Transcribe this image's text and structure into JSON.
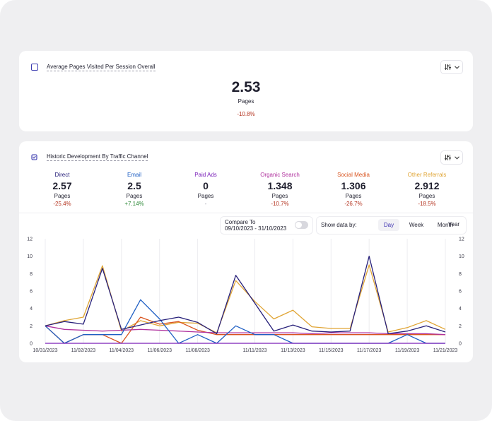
{
  "summary": {
    "title": "Average Pages Visited Per Session Overall",
    "value": "2.53",
    "unit": "Pages",
    "delta": "-10.8%",
    "menu_icon": "sliders-icon"
  },
  "channels": {
    "title": "Historic Development By Traffic Channel",
    "menu_icon": "sliders-icon",
    "metrics": [
      {
        "name": "Direct",
        "value": "2.57",
        "unit": "Pages",
        "delta": "-25.4%",
        "color": "#27207a",
        "delta_color": "#b4331f"
      },
      {
        "name": "Email",
        "value": "2.5",
        "unit": "Pages",
        "delta": "+7.14%",
        "color": "#1f5fc4",
        "delta_color": "#2f8a3a"
      },
      {
        "name": "Paid Ads",
        "value": "0",
        "unit": "Pages",
        "delta": "-",
        "color": "#7a1fb8",
        "delta_color": "#9a9aa8"
      },
      {
        "name": "Organic Search",
        "value": "1.348",
        "unit": "Pages",
        "delta": "-10.7%",
        "color": "#b0329e",
        "delta_color": "#b4331f"
      },
      {
        "name": "Social Media",
        "value": "1.306",
        "unit": "Pages",
        "delta": "-26.7%",
        "color": "#d9541f",
        "delta_color": "#b4331f"
      },
      {
        "name": "Other Referrals",
        "value": "2.912",
        "unit": "Pages",
        "delta": "-18.5%",
        "color": "#e0a535",
        "delta_color": "#b4331f"
      }
    ],
    "compare": {
      "label": "Compare To",
      "range": "09/10/2023 - 31/10/2023",
      "enabled": false
    },
    "show_by": {
      "label": "Show data by:",
      "options": [
        "Day",
        "Week",
        "Month",
        "Year"
      ],
      "selected": "Day"
    }
  },
  "chart_data": {
    "type": "line",
    "x": [
      "10/31/2023",
      "11/01/2023",
      "11/02/2023",
      "11/03/2023",
      "11/04/2023",
      "11/05/2023",
      "11/06/2023",
      "11/07/2023",
      "11/08/2023",
      "11/09/2023",
      "11/10/2023",
      "11/11/2023",
      "11/12/2023",
      "11/13/2023",
      "11/14/2023",
      "11/15/2023",
      "11/16/2023",
      "11/17/2023",
      "11/18/2023",
      "11/19/2023",
      "11/20/2023",
      "11/21/2023"
    ],
    "x_tick_labels": [
      "10/31/2023",
      "11/02/2023",
      "11/04/2023",
      "11/06/2023",
      "11/08/2023",
      "11/11/2023",
      "11/13/2023",
      "11/15/2023",
      "11/17/2023",
      "11/19/2023",
      "11/21/2023"
    ],
    "y_ticks": [
      "0",
      "2",
      "4",
      "6",
      "8",
      "10",
      "12"
    ],
    "ylim": [
      0,
      12
    ],
    "grid": "vertical",
    "series": [
      {
        "name": "Direct",
        "color": "#27207a",
        "values": [
          2,
          2.5,
          2.2,
          8.6,
          1.6,
          2.1,
          2.6,
          3.0,
          2.4,
          1.1,
          7.8,
          4.6,
          1.4,
          2.1,
          1.4,
          1.3,
          1.4,
          10.0,
          1.1,
          1.4,
          2.0,
          1.3
        ]
      },
      {
        "name": "Email",
        "color": "#1f5fc4",
        "values": [
          2,
          0,
          1,
          1,
          1,
          5,
          2.8,
          0,
          1,
          0,
          2,
          1,
          1,
          0,
          0,
          0,
          0,
          0,
          0,
          1,
          0,
          0
        ]
      },
      {
        "name": "Paid Ads",
        "color": "#7a1fb8",
        "values": [
          0,
          0,
          0,
          0,
          0,
          0,
          0,
          0,
          0,
          0,
          0,
          0,
          0,
          0,
          0,
          0,
          0,
          0,
          0,
          0,
          0,
          0
        ]
      },
      {
        "name": "Organic Search",
        "color": "#b0329e",
        "values": [
          2,
          1.6,
          1.5,
          1.4,
          1.5,
          1.6,
          1.5,
          1.4,
          1.3,
          1.2,
          1.2,
          1.2,
          1.2,
          1.2,
          1.1,
          1.2,
          1.2,
          1.2,
          1.1,
          1.1,
          1.1,
          1.0
        ]
      },
      {
        "name": "Social Media",
        "color": "#d9541f",
        "values": [
          2,
          0,
          1,
          1,
          0,
          3,
          2.2,
          2.5,
          1.5,
          1,
          1,
          1,
          1,
          1,
          1,
          1,
          1,
          1,
          1,
          1,
          1,
          1
        ]
      },
      {
        "name": "Other Referrals",
        "color": "#e0a535",
        "values": [
          2,
          2.6,
          3.0,
          8.9,
          1.4,
          2.6,
          2.0,
          2.4,
          2.3,
          1.2,
          7.2,
          4.8,
          2.8,
          3.8,
          1.9,
          1.7,
          1.7,
          9.0,
          1.3,
          1.8,
          2.6,
          1.6
        ]
      }
    ]
  }
}
